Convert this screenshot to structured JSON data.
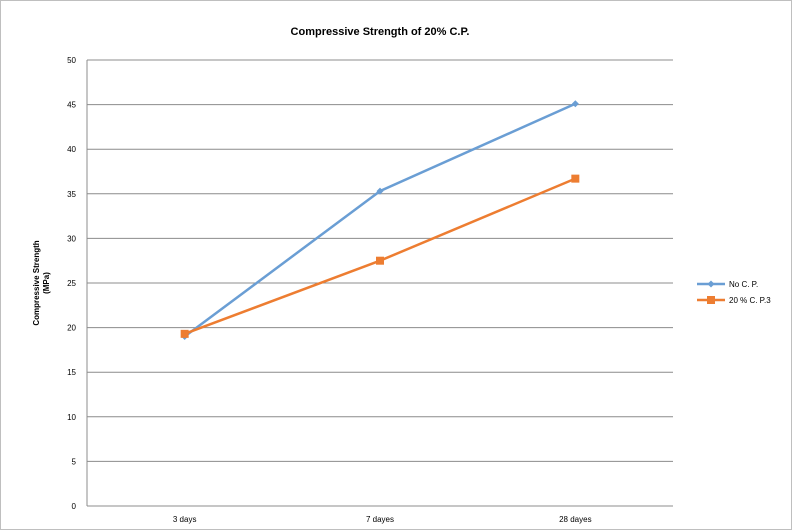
{
  "chart_data": {
    "type": "line",
    "title": "Compressive Strength of 20% C.P.",
    "xlabel": "",
    "ylabel_lines": [
      "Compressive Strength",
      "(MPa)"
    ],
    "categories": [
      "3 days",
      "7 dayes",
      "28 dayes"
    ],
    "ylim": [
      0,
      50
    ],
    "yticks": [
      0,
      5,
      10,
      15,
      20,
      25,
      30,
      35,
      40,
      45,
      50
    ],
    "grid": "horizontal",
    "legend_position": "right",
    "series": [
      {
        "name": "No C. P.",
        "values": [
          19.0,
          35.3,
          45.1
        ],
        "color": "#6a9ed4",
        "marker": "diamond"
      },
      {
        "name": "20 % C. P.3",
        "values": [
          19.3,
          27.5,
          36.7
        ],
        "color": "#ed7d31",
        "marker": "square"
      }
    ]
  }
}
